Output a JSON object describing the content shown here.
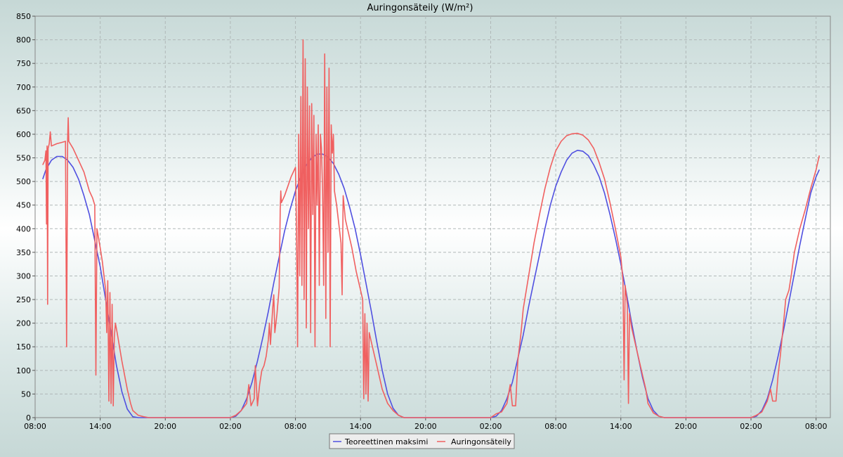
{
  "chart_data": {
    "type": "line",
    "title": "Auringonsäteily (W/m²)",
    "xlabel": "",
    "ylabel": "",
    "ylim": [
      0,
      850
    ],
    "y_ticks": [
      0,
      50,
      100,
      150,
      200,
      250,
      300,
      350,
      400,
      450,
      500,
      550,
      600,
      650,
      700,
      750,
      800,
      850
    ],
    "xlim_hours": [
      0,
      72.7
    ],
    "x_ticks": [
      {
        "hour": 0,
        "label": "08:00"
      },
      {
        "hour": 6,
        "label": "14:00"
      },
      {
        "hour": 12,
        "label": "20:00"
      },
      {
        "hour": 18,
        "label": "02:00"
      },
      {
        "hour": 24,
        "label": "08:00"
      },
      {
        "hour": 30,
        "label": "14:00"
      },
      {
        "hour": 36,
        "label": "20:00"
      },
      {
        "hour": 42,
        "label": "02:00"
      },
      {
        "hour": 48,
        "label": "08:00"
      },
      {
        "hour": 54,
        "label": "14:00"
      },
      {
        "hour": 60,
        "label": "20:00"
      },
      {
        "hour": 66,
        "label": "02:00"
      },
      {
        "hour": 72,
        "label": "08:00"
      }
    ],
    "grid": true,
    "legend_position": "bottom-center",
    "series": [
      {
        "name": "Teoreettinen maksimi",
        "color": "#5050e0",
        "points": [
          [
            0.7,
            505
          ],
          [
            1.0,
            525
          ],
          [
            1.5,
            545
          ],
          [
            2.0,
            553
          ],
          [
            2.5,
            553
          ],
          [
            3.0,
            545
          ],
          [
            3.5,
            530
          ],
          [
            4.0,
            505
          ],
          [
            4.5,
            470
          ],
          [
            5.0,
            430
          ],
          [
            5.5,
            375
          ],
          [
            6.0,
            320
          ],
          [
            6.5,
            250
          ],
          [
            7.0,
            180
          ],
          [
            7.5,
            110
          ],
          [
            8.0,
            55
          ],
          [
            8.5,
            18
          ],
          [
            9.0,
            2
          ],
          [
            9.5,
            0
          ],
          [
            18.0,
            0
          ],
          [
            18.5,
            3
          ],
          [
            19.0,
            15
          ],
          [
            19.5,
            40
          ],
          [
            20.0,
            75
          ],
          [
            20.5,
            120
          ],
          [
            21.0,
            170
          ],
          [
            21.5,
            225
          ],
          [
            22.0,
            285
          ],
          [
            22.5,
            340
          ],
          [
            23.0,
            395
          ],
          [
            23.5,
            440
          ],
          [
            24.0,
            480
          ],
          [
            24.5,
            510
          ],
          [
            25.0,
            535
          ],
          [
            25.5,
            550
          ],
          [
            26.0,
            558
          ],
          [
            26.5,
            558
          ],
          [
            27.0,
            552
          ],
          [
            27.5,
            538
          ],
          [
            28.0,
            515
          ],
          [
            28.5,
            485
          ],
          [
            29.0,
            445
          ],
          [
            29.5,
            400
          ],
          [
            30.0,
            345
          ],
          [
            30.5,
            285
          ],
          [
            31.0,
            225
          ],
          [
            31.5,
            160
          ],
          [
            32.0,
            100
          ],
          [
            32.5,
            50
          ],
          [
            33.0,
            20
          ],
          [
            33.5,
            5
          ],
          [
            34.0,
            0
          ],
          [
            42.0,
            0
          ],
          [
            42.5,
            3
          ],
          [
            43.0,
            15
          ],
          [
            43.5,
            40
          ],
          [
            44.0,
            75
          ],
          [
            44.5,
            125
          ],
          [
            45.0,
            175
          ],
          [
            45.5,
            235
          ],
          [
            46.0,
            290
          ],
          [
            46.5,
            345
          ],
          [
            47.0,
            400
          ],
          [
            47.5,
            450
          ],
          [
            48.0,
            490
          ],
          [
            48.5,
            520
          ],
          [
            49.0,
            545
          ],
          [
            49.5,
            560
          ],
          [
            50.0,
            566
          ],
          [
            50.5,
            564
          ],
          [
            51.0,
            555
          ],
          [
            51.5,
            535
          ],
          [
            52.0,
            510
          ],
          [
            52.5,
            475
          ],
          [
            53.0,
            430
          ],
          [
            53.5,
            380
          ],
          [
            54.0,
            325
          ],
          [
            54.5,
            265
          ],
          [
            55.0,
            200
          ],
          [
            55.5,
            140
          ],
          [
            56.0,
            85
          ],
          [
            56.5,
            40
          ],
          [
            57.0,
            15
          ],
          [
            57.5,
            3
          ],
          [
            58.0,
            0
          ],
          [
            66.0,
            0
          ],
          [
            66.5,
            3
          ],
          [
            67.0,
            15
          ],
          [
            67.5,
            40
          ],
          [
            68.0,
            80
          ],
          [
            68.5,
            130
          ],
          [
            69.0,
            185
          ],
          [
            69.5,
            245
          ],
          [
            70.0,
            305
          ],
          [
            70.5,
            365
          ],
          [
            71.0,
            420
          ],
          [
            71.5,
            475
          ],
          [
            72.0,
            510
          ],
          [
            72.3,
            525
          ]
        ]
      },
      {
        "name": "Auringonsäteily",
        "color": "#f06060",
        "points": [
          [
            0.7,
            535
          ],
          [
            0.9,
            545
          ],
          [
            1.0,
            565
          ],
          [
            1.05,
            410
          ],
          [
            1.1,
            575
          ],
          [
            1.15,
            240
          ],
          [
            1.2,
            570
          ],
          [
            1.3,
            580
          ],
          [
            1.4,
            605
          ],
          [
            1.5,
            575
          ],
          [
            2.0,
            580
          ],
          [
            2.5,
            583
          ],
          [
            2.8,
            585
          ],
          [
            2.9,
            150
          ],
          [
            3.0,
            590
          ],
          [
            3.05,
            635
          ],
          [
            3.1,
            585
          ],
          [
            3.5,
            570
          ],
          [
            4.0,
            545
          ],
          [
            4.5,
            520
          ],
          [
            5.0,
            480
          ],
          [
            5.3,
            465
          ],
          [
            5.5,
            450
          ],
          [
            5.6,
            90
          ],
          [
            5.7,
            400
          ],
          [
            6.0,
            360
          ],
          [
            6.2,
            330
          ],
          [
            6.5,
            270
          ],
          [
            6.6,
            180
          ],
          [
            6.7,
            290
          ],
          [
            6.8,
            35
          ],
          [
            6.9,
            265
          ],
          [
            7.0,
            30
          ],
          [
            7.1,
            240
          ],
          [
            7.2,
            25
          ],
          [
            7.3,
            170
          ],
          [
            7.4,
            200
          ],
          [
            7.6,
            175
          ],
          [
            8.0,
            120
          ],
          [
            8.5,
            60
          ],
          [
            8.8,
            30
          ],
          [
            9.0,
            15
          ],
          [
            9.5,
            5
          ],
          [
            10.0,
            2
          ],
          [
            10.5,
            0
          ],
          [
            18.0,
            0
          ],
          [
            18.5,
            5
          ],
          [
            19.0,
            15
          ],
          [
            19.5,
            30
          ],
          [
            19.7,
            70
          ],
          [
            19.9,
            25
          ],
          [
            20.2,
            40
          ],
          [
            20.3,
            110
          ],
          [
            20.5,
            25
          ],
          [
            20.7,
            70
          ],
          [
            20.9,
            100
          ],
          [
            21.1,
            110
          ],
          [
            21.3,
            130
          ],
          [
            21.5,
            165
          ],
          [
            21.6,
            200
          ],
          [
            21.7,
            155
          ],
          [
            21.9,
            230
          ],
          [
            22.0,
            260
          ],
          [
            22.1,
            180
          ],
          [
            22.3,
            220
          ],
          [
            22.5,
            275
          ],
          [
            22.6,
            440
          ],
          [
            22.65,
            480
          ],
          [
            22.7,
            455
          ],
          [
            23.0,
            470
          ],
          [
            23.3,
            490
          ],
          [
            23.6,
            510
          ],
          [
            24.0,
            530
          ],
          [
            24.1,
            400
          ],
          [
            24.2,
            150
          ],
          [
            24.3,
            600
          ],
          [
            24.4,
            300
          ],
          [
            24.5,
            680
          ],
          [
            24.6,
            280
          ],
          [
            24.7,
            800
          ],
          [
            24.8,
            250
          ],
          [
            24.9,
            760
          ],
          [
            25.0,
            190
          ],
          [
            25.1,
            700
          ],
          [
            25.2,
            400
          ],
          [
            25.3,
            660
          ],
          [
            25.4,
            180
          ],
          [
            25.5,
            665
          ],
          [
            25.6,
            430
          ],
          [
            25.7,
            640
          ],
          [
            25.8,
            150
          ],
          [
            25.9,
            600
          ],
          [
            26.0,
            450
          ],
          [
            26.1,
            620
          ],
          [
            26.2,
            280
          ],
          [
            26.3,
            600
          ],
          [
            26.4,
            570
          ],
          [
            26.5,
            480
          ],
          [
            26.6,
            280
          ],
          [
            26.7,
            770
          ],
          [
            26.8,
            210
          ],
          [
            26.9,
            700
          ],
          [
            27.0,
            350
          ],
          [
            27.1,
            740
          ],
          [
            27.2,
            150
          ],
          [
            27.3,
            620
          ],
          [
            27.4,
            560
          ],
          [
            27.5,
            600
          ],
          [
            27.6,
            480
          ],
          [
            27.8,
            450
          ],
          [
            28.0,
            410
          ],
          [
            28.2,
            370
          ],
          [
            28.3,
            260
          ],
          [
            28.4,
            470
          ],
          [
            28.6,
            420
          ],
          [
            28.9,
            390
          ],
          [
            29.2,
            360
          ],
          [
            29.6,
            310
          ],
          [
            30.0,
            270
          ],
          [
            30.2,
            250
          ],
          [
            30.3,
            40
          ],
          [
            30.4,
            220
          ],
          [
            30.5,
            50
          ],
          [
            30.6,
            200
          ],
          [
            30.7,
            35
          ],
          [
            30.8,
            180
          ],
          [
            31.0,
            160
          ],
          [
            31.5,
            110
          ],
          [
            32.0,
            60
          ],
          [
            32.5,
            30
          ],
          [
            33.0,
            15
          ],
          [
            33.5,
            5
          ],
          [
            34.0,
            0
          ],
          [
            42.0,
            0
          ],
          [
            42.5,
            8
          ],
          [
            43.0,
            12
          ],
          [
            43.5,
            30
          ],
          [
            43.8,
            70
          ],
          [
            44.0,
            25
          ],
          [
            44.3,
            25
          ],
          [
            44.5,
            120
          ],
          [
            44.8,
            180
          ],
          [
            45.0,
            230
          ],
          [
            45.5,
            300
          ],
          [
            46.0,
            370
          ],
          [
            46.5,
            430
          ],
          [
            47.0,
            485
          ],
          [
            47.5,
            530
          ],
          [
            48.0,
            565
          ],
          [
            48.5,
            585
          ],
          [
            49.0,
            597
          ],
          [
            49.5,
            601
          ],
          [
            50.0,
            602
          ],
          [
            50.5,
            598
          ],
          [
            51.0,
            588
          ],
          [
            51.5,
            570
          ],
          [
            52.0,
            540
          ],
          [
            52.5,
            505
          ],
          [
            53.0,
            455
          ],
          [
            53.5,
            400
          ],
          [
            54.0,
            340
          ],
          [
            54.2,
            290
          ],
          [
            54.3,
            80
          ],
          [
            54.4,
            280
          ],
          [
            54.6,
            240
          ],
          [
            54.7,
            30
          ],
          [
            54.8,
            220
          ],
          [
            55.0,
            190
          ],
          [
            55.5,
            140
          ],
          [
            56.0,
            90
          ],
          [
            56.3,
            60
          ],
          [
            56.5,
            30
          ],
          [
            57.0,
            10
          ],
          [
            57.5,
            3
          ],
          [
            58.0,
            0
          ],
          [
            66.0,
            0
          ],
          [
            66.5,
            5
          ],
          [
            67.0,
            12
          ],
          [
            67.5,
            35
          ],
          [
            67.8,
            60
          ],
          [
            68.0,
            35
          ],
          [
            68.3,
            35
          ],
          [
            68.5,
            90
          ],
          [
            68.7,
            130
          ],
          [
            69.0,
            200
          ],
          [
            69.2,
            250
          ],
          [
            69.5,
            270
          ],
          [
            69.7,
            300
          ],
          [
            70.0,
            350
          ],
          [
            70.5,
            400
          ],
          [
            71.0,
            440
          ],
          [
            71.5,
            485
          ],
          [
            72.0,
            525
          ],
          [
            72.3,
            555
          ]
        ]
      }
    ]
  }
}
